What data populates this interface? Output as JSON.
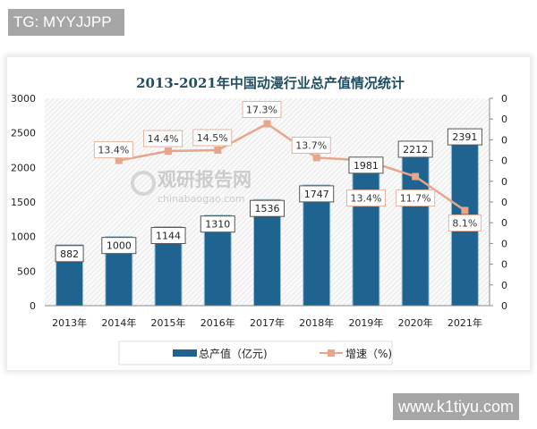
{
  "watermarks": {
    "top_left": "TG: MYYJJPP",
    "bottom_right": "www.k1tiyu.com",
    "logo_cn": "观研报告网",
    "logo_en": "chinabaogao.com"
  },
  "chart_data": {
    "type": "bar+line",
    "title": "2013-2021年中国动漫行业总产值情况统计",
    "categories": [
      "2013年",
      "2014年",
      "2015年",
      "2016年",
      "2017年",
      "2018年",
      "2019年",
      "2020年",
      "2021年"
    ],
    "series": [
      {
        "name": "总产值（亿元)",
        "type": "bar",
        "axis": "left",
        "color": "#1f6391",
        "values": [
          882,
          1000,
          1144,
          1310,
          1536,
          1747,
          1981,
          2212,
          2391
        ],
        "labels": [
          "882",
          "1000",
          "1144",
          "1310",
          "1536",
          "1747",
          "1981",
          "2212",
          "2391"
        ]
      },
      {
        "name": "增速（%)",
        "type": "line",
        "axis": "right",
        "color": "#e8a58a",
        "values": [
          null,
          13.4,
          14.4,
          14.5,
          17.3,
          13.7,
          13.4,
          11.7,
          8.1
        ],
        "labels": [
          "",
          "13.4%",
          "14.4%",
          "14.5%",
          "17.3%",
          "13.7%",
          "13.4%",
          "11.7%",
          "8.1%"
        ]
      }
    ],
    "left_axis": {
      "ylim": [
        0,
        3000
      ],
      "ticks": [
        "0",
        "500",
        "1000",
        "1500",
        "2000",
        "2500",
        "3000"
      ]
    },
    "right_axis": {
      "ylim": [
        -2,
        20
      ],
      "ticks": [
        "0",
        "0",
        "0",
        "0",
        "0",
        "0",
        "0",
        "0",
        "0",
        "0",
        "0"
      ]
    },
    "grid": false,
    "background": "diagonal hatch",
    "legend": "bottom"
  }
}
